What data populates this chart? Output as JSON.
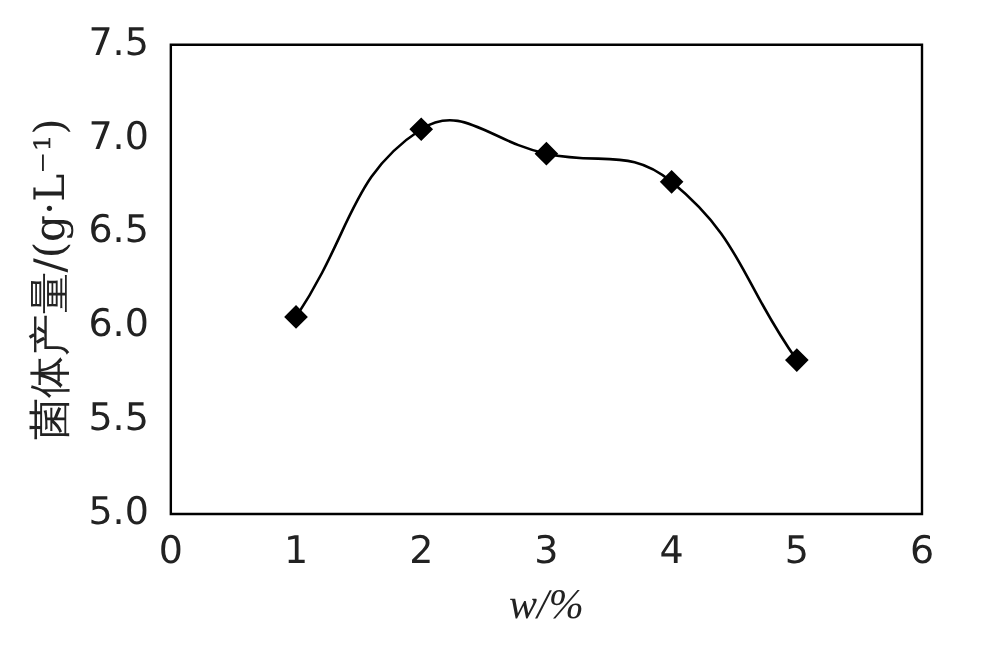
{
  "chart_data": {
    "type": "line",
    "xlabel": "w/%",
    "ylabel": "菌体产量/(g·L⁻¹)",
    "x": [
      1,
      2,
      3,
      4,
      5
    ],
    "series": [
      {
        "color": "#000000",
        "values": [
          6.05,
          7.05,
          6.92,
          6.77,
          5.82
        ]
      }
    ],
    "xlim": [
      0,
      6
    ],
    "xticks": [
      0,
      1,
      2,
      3,
      4,
      5,
      6
    ],
    "ylim": [
      5.0,
      7.5
    ],
    "yticks": [
      {
        "value": 5,
        "label": "5.0"
      },
      {
        "value": 5.5,
        "label": "5.5"
      },
      {
        "value": 6,
        "label": "6.0"
      },
      {
        "value": 6.5,
        "label": "6.5"
      },
      {
        "value": 7,
        "label": "7.0"
      },
      {
        "value": 7.5,
        "label": "7.5"
      }
    ],
    "grid": false,
    "legend": false,
    "marker": "diamond",
    "line_style": "solid"
  }
}
